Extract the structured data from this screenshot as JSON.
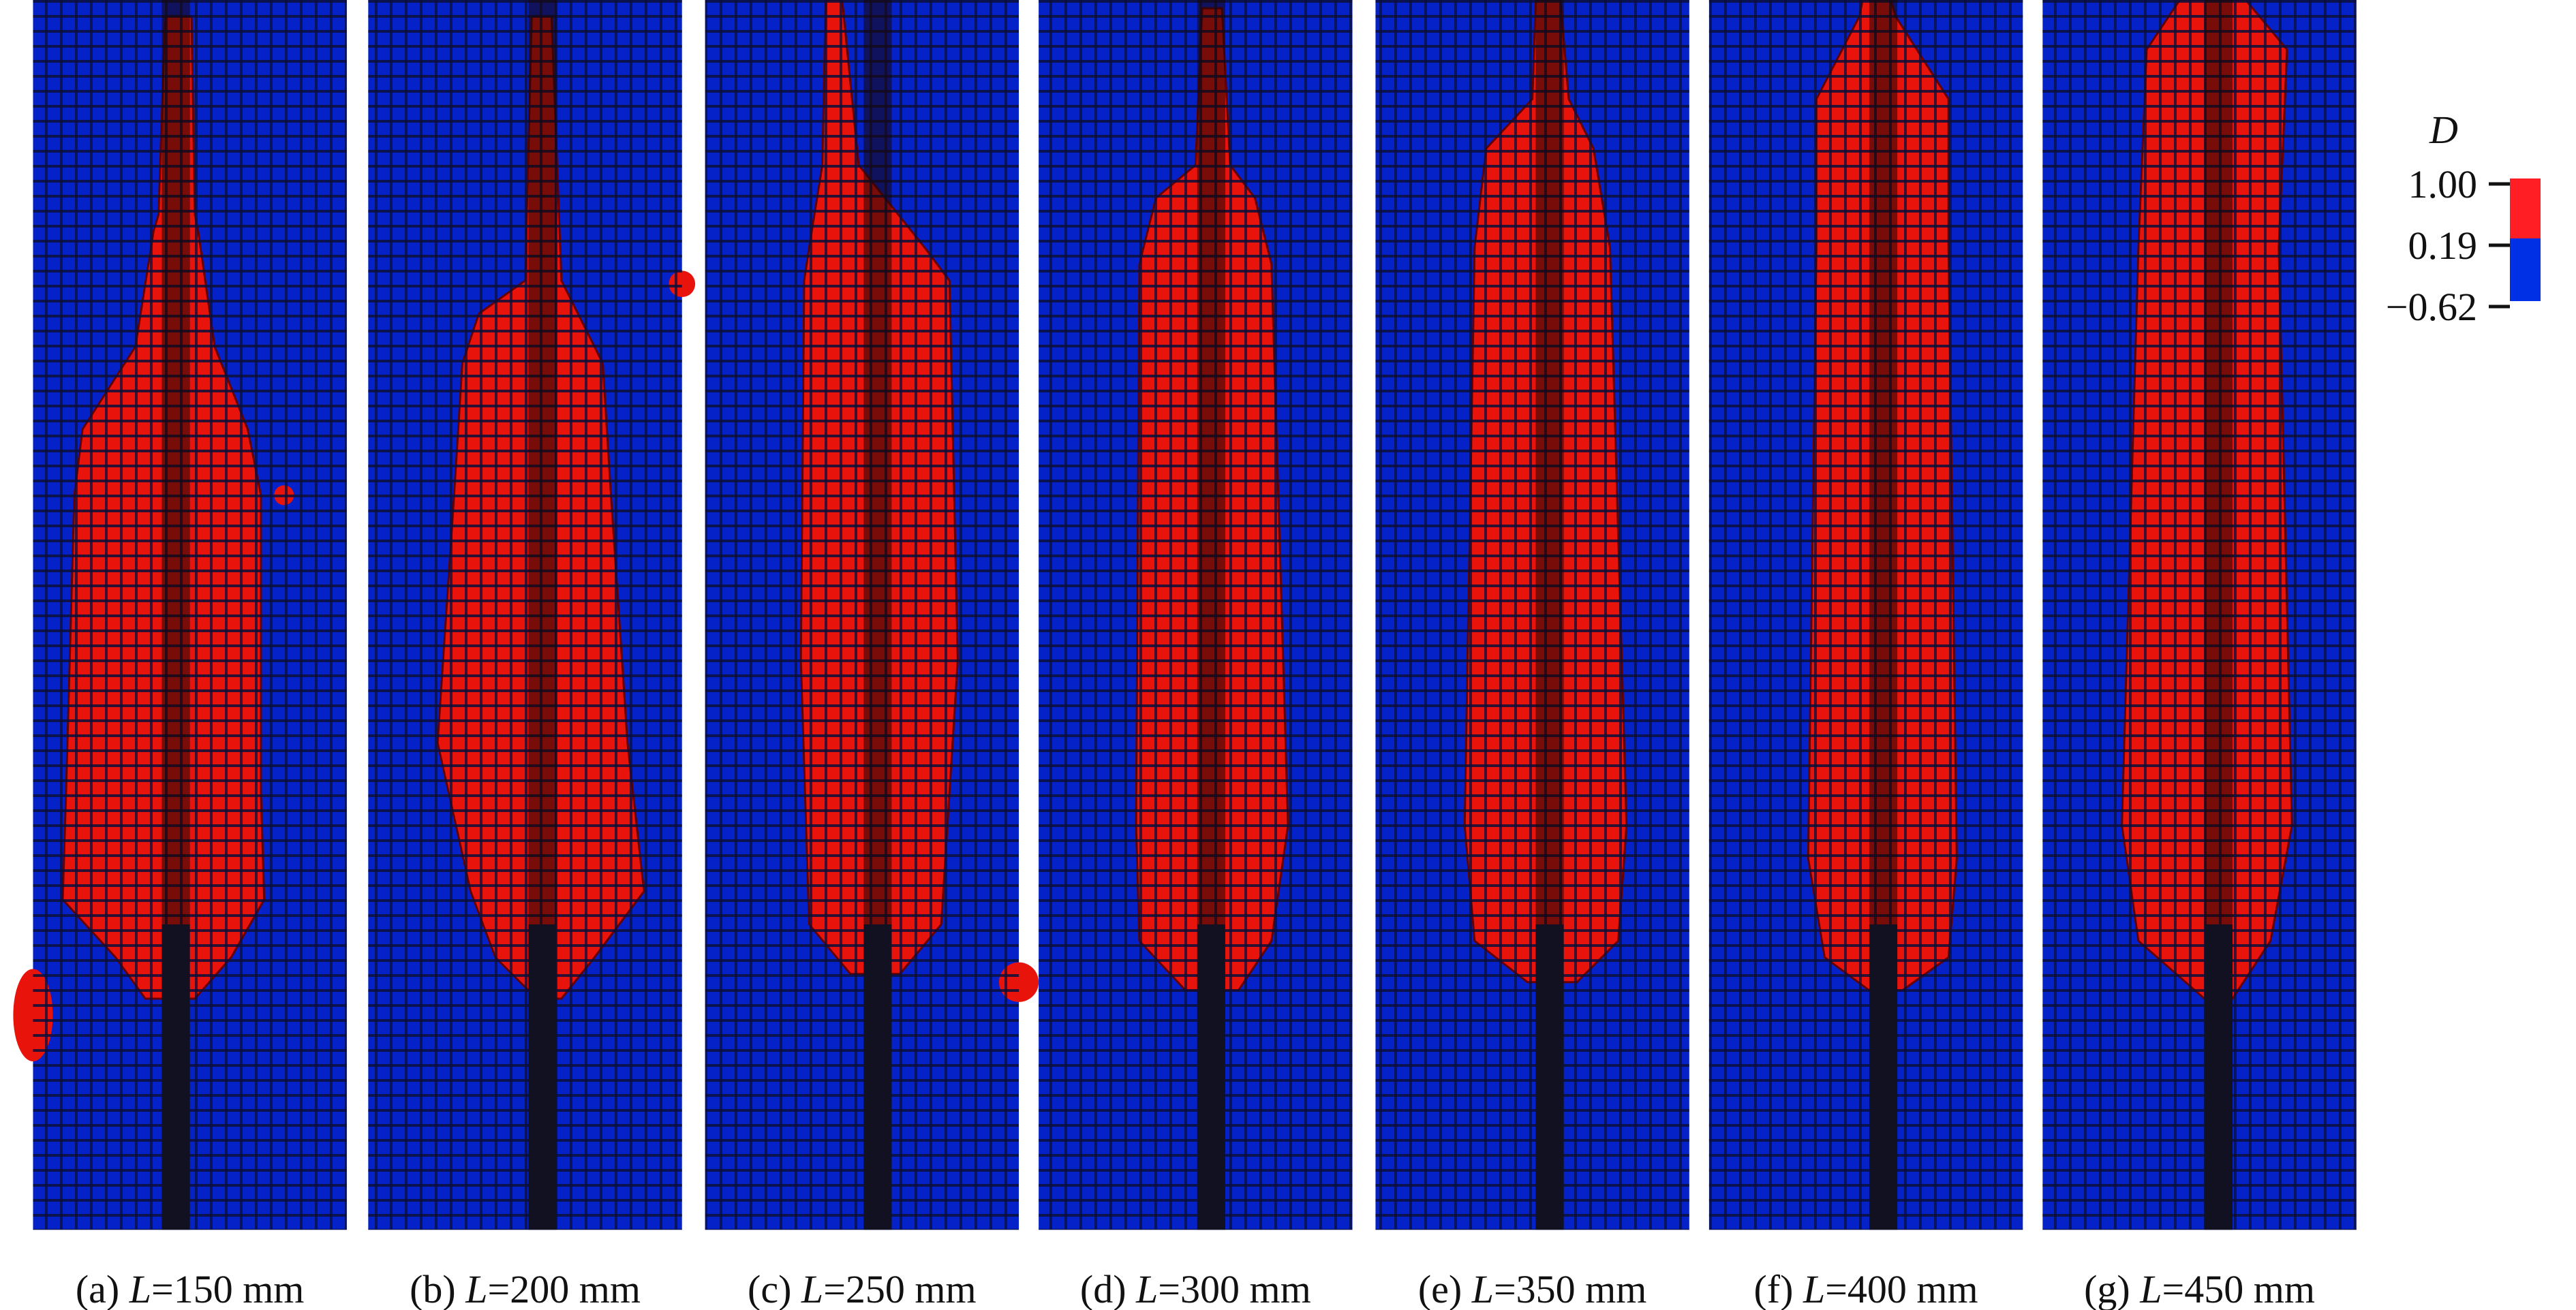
{
  "figure": {
    "panels": [
      {
        "label_prefix": "(a) ",
        "var": "L",
        "label_value": "=150 mm"
      },
      {
        "label_prefix": "(b) ",
        "var": "L",
        "label_value": "=200 mm"
      },
      {
        "label_prefix": "(c) ",
        "var": "L",
        "label_value": "=250 mm"
      },
      {
        "label_prefix": "(d) ",
        "var": "L",
        "label_value": "=300 mm"
      },
      {
        "label_prefix": "(e) ",
        "var": "L",
        "label_value": "=350 mm"
      },
      {
        "label_prefix": "(f) ",
        "var": "L",
        "label_value": "=400 mm"
      },
      {
        "label_prefix": "(g) ",
        "var": "L",
        "label_value": "=450 mm"
      }
    ],
    "legend": {
      "title": "D",
      "ticks": [
        "1.00",
        "0.19",
        "−0.62"
      ],
      "colors": {
        "damaged": "#ff1e24",
        "undamaged": "#0030e6"
      }
    },
    "colors": {
      "mesh_blue": "#0522c8",
      "damage_red": "#e8140c",
      "mesh_line": "#0a0f3a",
      "rod": "#111122"
    }
  }
}
